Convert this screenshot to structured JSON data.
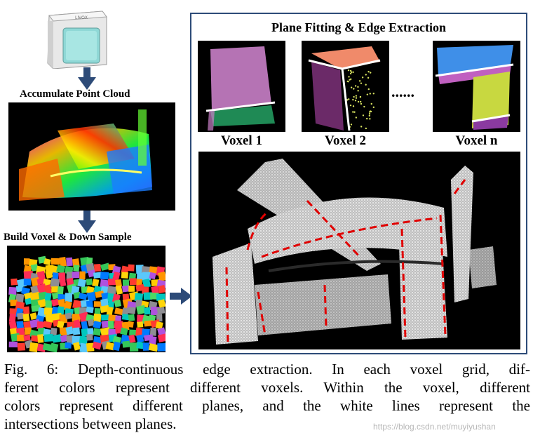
{
  "figure": {
    "device_brand": "LIVOX",
    "step_labels": {
      "accumulate": "Accumulate Point Cloud",
      "voxel": "Build Voxel & Down Sample"
    },
    "box_title": "Plane Fitting & Edge Extraction",
    "voxel_labels": [
      "Voxel 1",
      "Voxel 2",
      "Voxel n"
    ],
    "ellipsis": "......",
    "colors": {
      "arrow": "#2d4b78",
      "frame": "#2d4b78",
      "edge_red": "#e00000"
    }
  },
  "caption": {
    "lines": [
      "Fig. 6: Depth-continuous edge extraction. In each voxel grid, dif-",
      "ferent colors represent different voxels. Within the voxel, different",
      "colors represent different planes, and the white lines represent the",
      "intersections between planes."
    ]
  },
  "watermark": "https://blog.csdn.net/muyiyushan"
}
